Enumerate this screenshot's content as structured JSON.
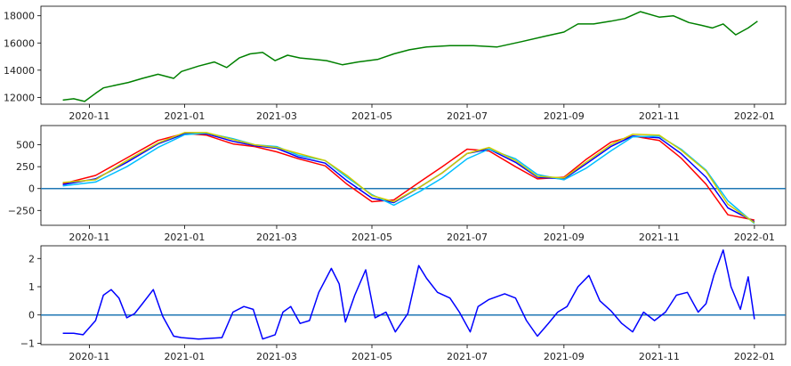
{
  "chart_data": [
    {
      "type": "line",
      "x_ticks": [
        "2020-11",
        "2021-01",
        "2021-03",
        "2021-05",
        "2021-07",
        "2021-09",
        "2021-11",
        "2022-01"
      ],
      "y_ticks": [
        12000,
        14000,
        16000,
        18000
      ],
      "ylim": [
        11500,
        18700
      ],
      "grid": false,
      "series": [
        {
          "color": "#008000",
          "x": [
            "2020-10-15",
            "2020-10-22",
            "2020-10-29",
            "2020-11-05",
            "2020-11-10",
            "2020-11-18",
            "2020-11-26",
            "2020-12-05",
            "2020-12-15",
            "2020-12-25",
            "2020-12-30",
            "2021-01-10",
            "2021-01-20",
            "2021-01-28",
            "2021-02-05",
            "2021-02-12",
            "2021-02-20",
            "2021-02-28",
            "2021-03-08",
            "2021-03-16",
            "2021-03-25",
            "2021-04-02",
            "2021-04-12",
            "2021-04-22",
            "2021-05-05",
            "2021-05-15",
            "2021-05-25",
            "2021-06-05",
            "2021-06-20",
            "2021-07-05",
            "2021-07-20",
            "2021-08-05",
            "2021-08-20",
            "2021-09-01",
            "2021-09-10",
            "2021-09-20",
            "2021-10-01",
            "2021-10-10",
            "2021-10-20",
            "2021-11-01",
            "2021-11-10",
            "2021-11-20",
            "2021-11-28",
            "2021-12-05",
            "2021-12-12",
            "2021-12-20",
            "2021-12-28",
            "2022-01-03"
          ],
          "values": [
            11800,
            11900,
            11700,
            12300,
            12700,
            12900,
            13100,
            13400,
            13700,
            13400,
            13900,
            14300,
            14600,
            14200,
            14900,
            15200,
            15300,
            14700,
            15100,
            14900,
            14800,
            14700,
            14400,
            14600,
            14800,
            15200,
            15500,
            15700,
            15800,
            15800,
            15700,
            16100,
            16500,
            16800,
            17400,
            17400,
            17600,
            17800,
            18300,
            17900,
            18000,
            17500,
            17300,
            17100,
            17400,
            16600,
            17100,
            17600
          ]
        }
      ]
    },
    {
      "type": "line",
      "x_ticks": [
        "2020-11",
        "2021-01",
        "2021-03",
        "2021-05",
        "2021-07",
        "2021-09",
        "2021-11",
        "2022-01"
      ],
      "y_ticks": [
        -250,
        0,
        250,
        500
      ],
      "ylim": [
        -420,
        720
      ],
      "grid": false,
      "hline": 0,
      "hline_color": "#1f77b4",
      "x": [
        "2020-10-15",
        "2020-11-05",
        "2020-11-25",
        "2020-12-15",
        "2021-01-01",
        "2021-01-15",
        "2021-02-01",
        "2021-02-15",
        "2021-03-01",
        "2021-03-15",
        "2021-04-01",
        "2021-04-15",
        "2021-05-01",
        "2021-05-15",
        "2021-06-01",
        "2021-06-15",
        "2021-07-01",
        "2021-07-15",
        "2021-08-01",
        "2021-08-15",
        "2021-09-01",
        "2021-09-15",
        "2021-10-01",
        "2021-10-15",
        "2021-11-01",
        "2021-11-15",
        "2021-12-01",
        "2021-12-15",
        "2022-01-01"
      ],
      "series": [
        {
          "color": "#ff0000",
          "values": [
            55,
            150,
            350,
            550,
            630,
            610,
            510,
            480,
            420,
            340,
            260,
            50,
            -150,
            -130,
            80,
            250,
            450,
            430,
            250,
            110,
            130,
            330,
            530,
            600,
            550,
            350,
            50,
            -300,
            -360
          ]
        },
        {
          "color": "#0000ff",
          "values": [
            45,
            110,
            300,
            510,
            625,
            625,
            540,
            490,
            460,
            360,
            290,
            90,
            -110,
            -160,
            20,
            180,
            400,
            450,
            300,
            130,
            110,
            280,
            480,
            600,
            580,
            400,
            130,
            -220,
            -380
          ]
        },
        {
          "color": "#00bfff",
          "values": [
            30,
            75,
            250,
            470,
            615,
            635,
            570,
            500,
            480,
            380,
            320,
            130,
            -70,
            -190,
            -30,
            120,
            340,
            450,
            340,
            160,
            100,
            230,
            430,
            590,
            600,
            450,
            210,
            -140,
            -400
          ]
        },
        {
          "color": "#cccc00",
          "values": [
            70,
            100,
            320,
            520,
            640,
            640,
            560,
            500,
            470,
            400,
            320,
            150,
            -80,
            -150,
            20,
            180,
            400,
            470,
            320,
            140,
            120,
            300,
            500,
            620,
            610,
            440,
            200,
            -180,
            -390
          ]
        }
      ]
    },
    {
      "type": "line",
      "x_ticks": [
        "2020-11",
        "2021-01",
        "2021-03",
        "2021-05",
        "2021-07",
        "2021-09",
        "2021-11",
        "2022-01"
      ],
      "y_ticks": [
        -1,
        0,
        1,
        2
      ],
      "ylim": [
        -1.05,
        2.45
      ],
      "grid": false,
      "hline": 0,
      "hline_color": "#1f77b4",
      "series": [
        {
          "color": "#0000ff",
          "x": [
            "2020-10-15",
            "2020-10-22",
            "2020-10-28",
            "2020-11-05",
            "2020-11-10",
            "2020-11-15",
            "2020-11-20",
            "2020-11-25",
            "2020-11-30",
            "2020-12-05",
            "2020-12-12",
            "2020-12-18",
            "2020-12-25",
            "2020-12-30",
            "2021-01-10",
            "2021-01-25",
            "2021-02-01",
            "2021-02-08",
            "2021-02-14",
            "2021-02-20",
            "2021-02-28",
            "2021-03-05",
            "2021-03-10",
            "2021-03-16",
            "2021-03-22",
            "2021-03-28",
            "2021-04-05",
            "2021-04-10",
            "2021-04-14",
            "2021-04-20",
            "2021-04-27",
            "2021-05-03",
            "2021-05-10",
            "2021-05-16",
            "2021-05-24",
            "2021-05-31",
            "2021-06-05",
            "2021-06-12",
            "2021-06-20",
            "2021-06-26",
            "2021-07-03",
            "2021-07-08",
            "2021-07-15",
            "2021-07-25",
            "2021-08-01",
            "2021-08-08",
            "2021-08-15",
            "2021-08-22",
            "2021-08-28",
            "2021-09-03",
            "2021-09-10",
            "2021-09-17",
            "2021-09-24",
            "2021-10-01",
            "2021-10-08",
            "2021-10-15",
            "2021-10-22",
            "2021-10-29",
            "2021-11-05",
            "2021-11-12",
            "2021-11-19",
            "2021-11-26",
            "2021-12-01",
            "2021-12-06",
            "2021-12-12",
            "2021-12-17",
            "2021-12-23",
            "2021-12-28",
            "2022-01-01"
          ],
          "values": [
            -0.65,
            -0.65,
            -0.7,
            -0.2,
            0.7,
            0.9,
            0.6,
            -0.1,
            0.05,
            0.4,
            0.9,
            -0.05,
            -0.75,
            -0.8,
            -0.85,
            -0.8,
            0.1,
            0.3,
            0.2,
            -0.85,
            -0.7,
            0.1,
            0.3,
            -0.3,
            -0.2,
            0.8,
            1.65,
            1.1,
            -0.25,
            0.7,
            1.6,
            -0.1,
            0.1,
            -0.6,
            0.05,
            1.75,
            1.3,
            0.8,
            0.6,
            0.1,
            -0.6,
            0.3,
            0.55,
            0.75,
            0.6,
            -0.2,
            -0.75,
            -0.3,
            0.1,
            0.3,
            1.0,
            1.4,
            0.5,
            0.15,
            -0.3,
            -0.6,
            0.1,
            -0.2,
            0.1,
            0.7,
            0.8,
            0.1,
            0.4,
            1.4,
            2.3,
            1.0,
            0.2,
            1.35,
            -0.15
          ]
        }
      ]
    }
  ]
}
